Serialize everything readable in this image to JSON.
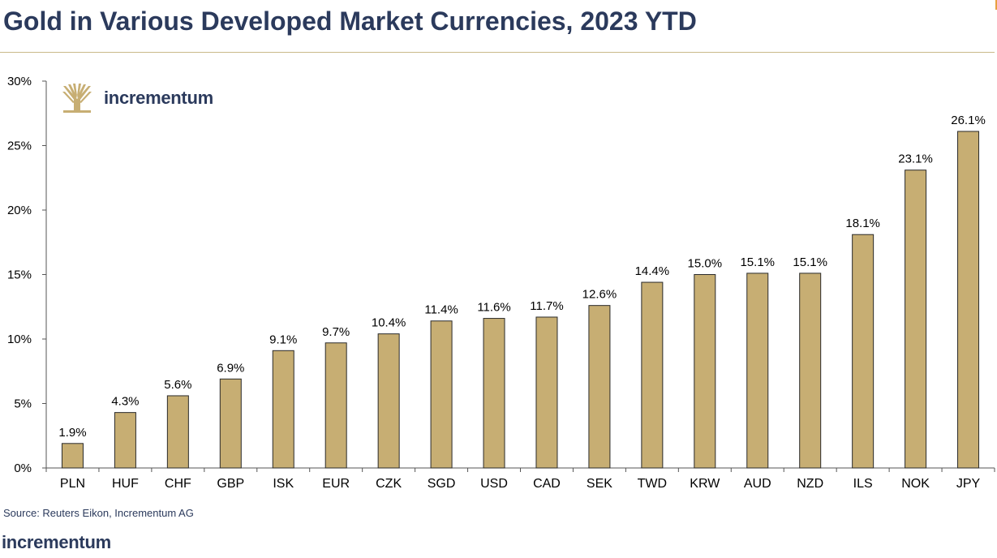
{
  "title": "Gold in Various Developed Market Currencies, 2023 YTD",
  "source": "Source: Reuters Eikon, Incrementum AG",
  "logo_text": "incrementum",
  "footer_brand": "incrementum",
  "colors": {
    "bar": "#c7ae73",
    "bar_stroke": "#2a2a2a",
    "title": "#2b3a5c",
    "rule": "#c9b98a"
  },
  "chart_data": {
    "type": "bar",
    "categories": [
      "PLN",
      "HUF",
      "CHF",
      "GBP",
      "ISK",
      "EUR",
      "CZK",
      "SGD",
      "USD",
      "CAD",
      "SEK",
      "TWD",
      "KRW",
      "AUD",
      "NZD",
      "ILS",
      "NOK",
      "JPY"
    ],
    "values": [
      1.9,
      4.3,
      5.6,
      6.9,
      9.1,
      9.7,
      10.4,
      11.4,
      11.6,
      11.7,
      12.6,
      14.4,
      15.0,
      15.1,
      15.1,
      18.1,
      23.1,
      26.1
    ],
    "data_labels": [
      "1.9%",
      "4.3%",
      "5.6%",
      "6.9%",
      "9.1%",
      "9.7%",
      "10.4%",
      "11.4%",
      "11.6%",
      "11.7%",
      "12.6%",
      "14.4%",
      "15.0%",
      "15.1%",
      "15.1%",
      "18.1%",
      "23.1%",
      "26.1%"
    ],
    "ylim": [
      0,
      30
    ],
    "yticks": [
      0,
      5,
      10,
      15,
      20,
      25,
      30
    ],
    "ytick_labels": [
      "0%",
      "5%",
      "10%",
      "15%",
      "20%",
      "25%",
      "30%"
    ],
    "grid": false,
    "legend": "none"
  }
}
